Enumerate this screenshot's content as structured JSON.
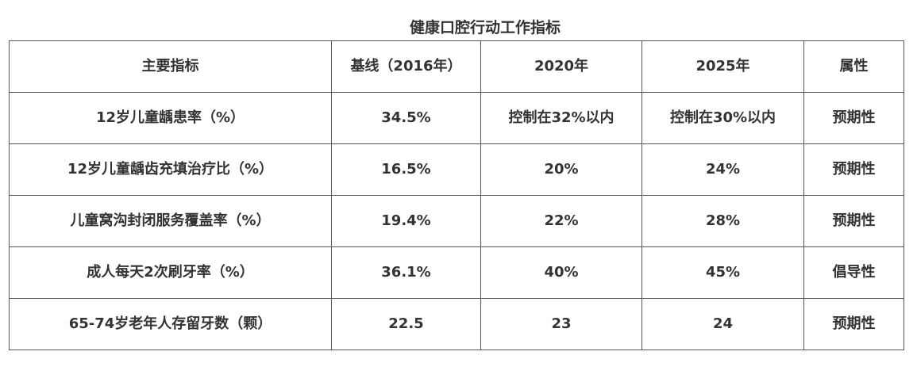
{
  "title": "健康口腔行动工作指标",
  "table": {
    "headers": [
      "主要指标",
      "基线（2016年）",
      "2020年",
      "2025年",
      "属性"
    ],
    "rows": [
      [
        "12岁儿童龋患率（%）",
        "34.5%",
        "控制在32%以内",
        "控制在30%以内",
        "预期性"
      ],
      [
        "12岁儿童龋齿充填治疗比（%）",
        "16.5%",
        "20%",
        "24%",
        "预期性"
      ],
      [
        "儿童窝沟封闭服务覆盖率（%）",
        "19.4%",
        "22%",
        "28%",
        "预期性"
      ],
      [
        "成人每天2次刷牙率（%）",
        "36.1%",
        "40%",
        "45%",
        "倡导性"
      ],
      [
        "65-74岁老年人存留牙数（颗）",
        "22.5",
        "23",
        "24",
        "预期性"
      ]
    ]
  }
}
